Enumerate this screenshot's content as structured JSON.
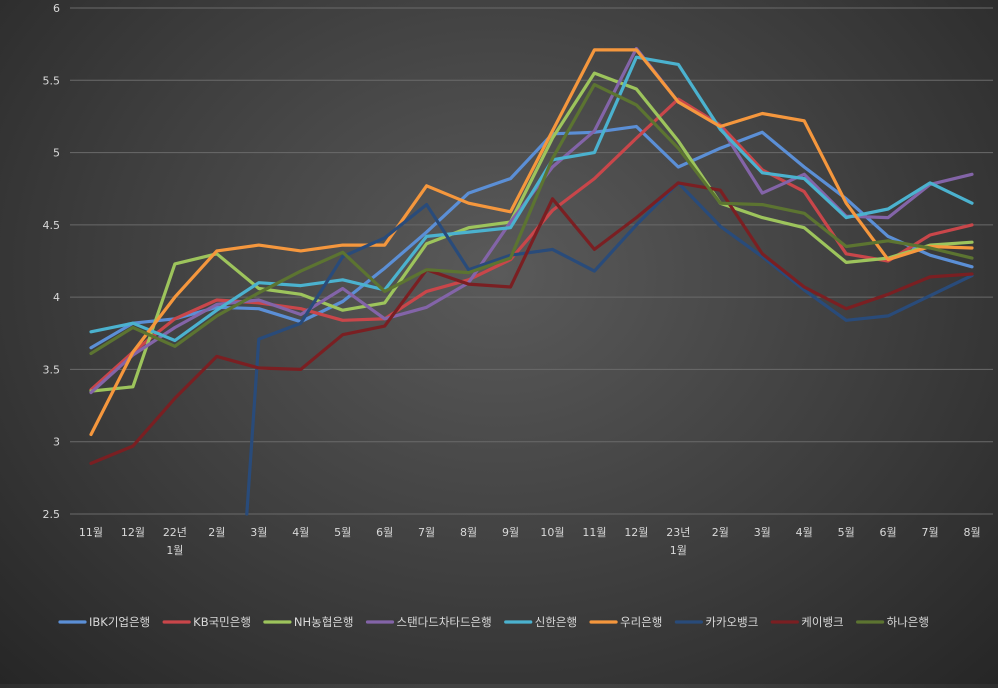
{
  "chart_data": {
    "type": "line",
    "title": "",
    "xlabel": "",
    "ylabel": "",
    "ylim": [
      2.5,
      6
    ],
    "yticks": [
      2.5,
      3,
      3.5,
      4,
      4.5,
      5,
      5.5,
      6
    ],
    "ytick_labels": [
      "2.5",
      "3",
      "3.5",
      "4",
      "4.5",
      "5",
      "5.5",
      "6"
    ],
    "grid": true,
    "legend_position": "bottom",
    "categories": [
      [
        "11월"
      ],
      [
        "12월"
      ],
      [
        "22년",
        "1월"
      ],
      [
        "2월"
      ],
      [
        "3월"
      ],
      [
        "4월"
      ],
      [
        "5월"
      ],
      [
        "6월"
      ],
      [
        "7월"
      ],
      [
        "8월"
      ],
      [
        "9월"
      ],
      [
        "10월"
      ],
      [
        "11월"
      ],
      [
        "12월"
      ],
      [
        "23년",
        "1월"
      ],
      [
        "2월"
      ],
      [
        "3월"
      ],
      [
        "4월"
      ],
      [
        "5월"
      ],
      [
        "6월"
      ],
      [
        "7월"
      ],
      [
        "8월"
      ]
    ],
    "series": [
      {
        "name": "IBK기업은행",
        "color": "#5b8fd6",
        "values": [
          3.65,
          3.82,
          3.85,
          3.93,
          3.92,
          3.83,
          3.97,
          4.2,
          4.45,
          4.72,
          4.82,
          5.13,
          5.14,
          5.18,
          4.9,
          5.03,
          5.14,
          4.9,
          4.68,
          4.42,
          4.29,
          4.21
        ]
      },
      {
        "name": "KB국민은행",
        "color": "#c9464a",
        "values": [
          3.36,
          3.62,
          3.85,
          3.98,
          3.96,
          3.92,
          3.84,
          3.85,
          4.04,
          4.12,
          4.26,
          4.6,
          4.82,
          5.1,
          5.37,
          5.19,
          4.88,
          4.73,
          4.3,
          4.25,
          4.43,
          4.5
        ]
      },
      {
        "name": "NH농협은행",
        "color": "#9dc45c",
        "values": [
          3.35,
          3.38,
          4.23,
          4.3,
          4.06,
          4.02,
          3.91,
          3.96,
          4.37,
          4.48,
          4.52,
          5.1,
          5.55,
          5.44,
          5.08,
          4.65,
          4.55,
          4.48,
          4.24,
          4.27,
          4.36,
          4.38
        ]
      },
      {
        "name": "스탠다드차타드은행",
        "color": "#8364a8",
        "values": [
          3.34,
          3.6,
          3.79,
          3.95,
          3.98,
          3.88,
          4.06,
          3.85,
          3.93,
          4.1,
          4.52,
          4.9,
          5.15,
          5.72,
          5.35,
          5.18,
          4.72,
          4.85,
          4.56,
          4.55,
          4.78,
          4.85
        ]
      },
      {
        "name": "신한은행",
        "color": "#4bb2cf",
        "values": [
          3.76,
          3.82,
          3.7,
          3.91,
          4.1,
          4.08,
          4.12,
          4.05,
          4.42,
          4.45,
          4.48,
          4.95,
          5.0,
          5.66,
          5.61,
          5.16,
          4.86,
          4.82,
          4.55,
          4.61,
          4.79,
          4.65
        ]
      },
      {
        "name": "우리은행",
        "color": "#f5973d",
        "values": [
          3.05,
          3.62,
          4.0,
          4.32,
          4.36,
          4.32,
          4.36,
          4.36,
          4.77,
          4.65,
          4.59,
          5.15,
          5.71,
          5.71,
          5.35,
          5.18,
          5.27,
          5.22,
          4.65,
          4.26,
          4.35,
          4.34
        ]
      },
      {
        "name": "카카오뱅크",
        "color": "#294b7a",
        "values": [
          null,
          null,
          null,
          null,
          3.71,
          3.82,
          4.28,
          4.41,
          4.64,
          4.19,
          4.29,
          4.33,
          4.18,
          4.5,
          4.79,
          4.49,
          4.28,
          4.05,
          3.84,
          3.87,
          4.01,
          4.15
        ]
      },
      {
        "name": "케이뱅크",
        "color": "#7a1f22",
        "values": [
          2.85,
          2.97,
          3.3,
          3.59,
          3.51,
          3.5,
          3.74,
          3.8,
          4.19,
          4.09,
          4.07,
          4.68,
          4.33,
          4.55,
          4.79,
          4.74,
          4.3,
          4.07,
          3.92,
          4.02,
          4.14,
          4.16
        ]
      },
      {
        "name": "하나은행",
        "color": "#5c7431",
        "values": [
          3.61,
          3.79,
          3.66,
          3.87,
          4.03,
          4.18,
          4.31,
          4.04,
          4.19,
          4.17,
          4.27,
          4.96,
          5.47,
          5.33,
          5.03,
          4.65,
          4.64,
          4.58,
          4.35,
          4.39,
          4.34,
          4.27
        ]
      }
    ],
    "annotations": [
      {
        "series": "카카오뱅크",
        "note": "line enters from below the axis minimum at 3월",
        "value_before_start": 2.5
      }
    ]
  }
}
